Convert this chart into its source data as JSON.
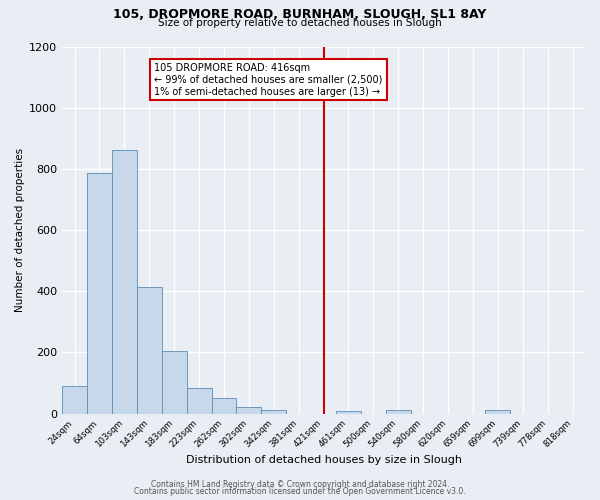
{
  "title": "105, DROPMORE ROAD, BURNHAM, SLOUGH, SL1 8AY",
  "subtitle": "Size of property relative to detached houses in Slough",
  "xlabel": "Distribution of detached houses by size in Slough",
  "ylabel": "Number of detached properties",
  "bin_labels": [
    "24sqm",
    "64sqm",
    "103sqm",
    "143sqm",
    "183sqm",
    "223sqm",
    "262sqm",
    "302sqm",
    "342sqm",
    "381sqm",
    "421sqm",
    "461sqm",
    "500sqm",
    "540sqm",
    "580sqm",
    "620sqm",
    "659sqm",
    "699sqm",
    "739sqm",
    "778sqm",
    "818sqm"
  ],
  "bar_heights": [
    90,
    785,
    862,
    415,
    205,
    85,
    52,
    20,
    13,
    0,
    0,
    10,
    0,
    13,
    0,
    0,
    0,
    13,
    0,
    0,
    0
  ],
  "bar_color": "#c8d8eb",
  "bar_edgecolor": "#5b8db8",
  "vline_label": "105 DROPMORE ROAD: 416sqm",
  "annotation_line1": "← 99% of detached houses are smaller (2,500)",
  "annotation_line2": "1% of semi-detached houses are larger (13) →",
  "ylim": [
    0,
    1200
  ],
  "yticks": [
    0,
    200,
    400,
    600,
    800,
    1000,
    1200
  ],
  "footer1": "Contains HM Land Registry data © Crown copyright and database right 2024.",
  "footer2": "Contains public sector information licensed under the Open Government Licence v3.0.",
  "background_color": "#e8eef4",
  "plot_bg_color": "#e8eef4",
  "grid_color": "#ffffff",
  "annotation_box_facecolor": "#ffffff",
  "annotation_box_edgecolor": "#cc0000",
  "vline_color": "#cc0000",
  "vline_index": 10
}
